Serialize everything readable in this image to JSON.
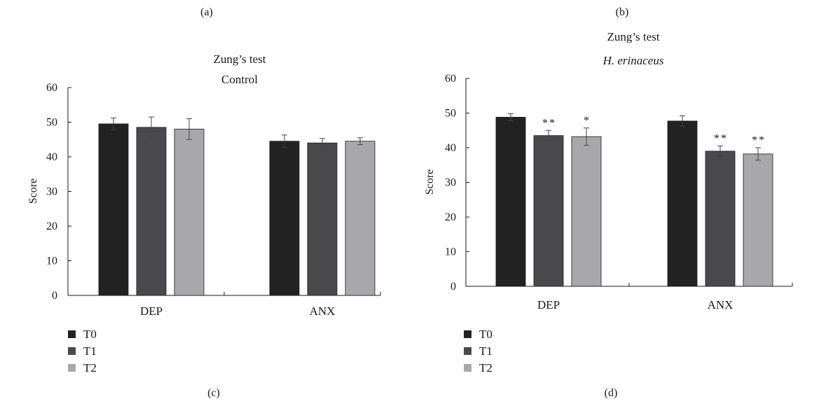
{
  "panel_labels": {
    "top_left": "(a)",
    "top_right": "(b)",
    "bottom_left": "(c)",
    "bottom_right": "(d)"
  },
  "colors": {
    "T0": "#222222",
    "T1": "#4a4a4c",
    "T2": "#a8a8aa"
  },
  "chart_data": [
    {
      "type": "bar",
      "title": "Zung’s test",
      "subtitle": "Control",
      "subtitle_italic": false,
      "ylabel": "Score",
      "xlabel": "",
      "ylim": [
        0,
        60
      ],
      "yticks": [
        0,
        10,
        20,
        30,
        40,
        50,
        60
      ],
      "categories": [
        "DEP",
        "ANX"
      ],
      "legend_position": "bottom-left",
      "series": [
        {
          "name": "T0",
          "values": [
            49.5,
            44.5
          ],
          "errors": [
            1.7,
            1.8
          ],
          "significance": [
            "",
            ""
          ]
        },
        {
          "name": "T1",
          "values": [
            48.5,
            44.0
          ],
          "errors": [
            3.0,
            1.3
          ],
          "significance": [
            "",
            ""
          ]
        },
        {
          "name": "T2",
          "values": [
            48.0,
            44.5
          ],
          "errors": [
            3.0,
            1.0
          ],
          "significance": [
            "",
            ""
          ]
        }
      ]
    },
    {
      "type": "bar",
      "title": "Zung’s test",
      "subtitle": "H. erinaceus",
      "subtitle_italic": true,
      "ylabel": "Score",
      "xlabel": "",
      "ylim": [
        0,
        60
      ],
      "yticks": [
        0,
        10,
        20,
        30,
        40,
        50,
        60
      ],
      "categories": [
        "DEP",
        "ANX"
      ],
      "legend_position": "bottom-left",
      "series": [
        {
          "name": "T0",
          "values": [
            48.8,
            47.7
          ],
          "errors": [
            1.0,
            1.5
          ],
          "significance": [
            "",
            ""
          ]
        },
        {
          "name": "T1",
          "values": [
            43.5,
            39.0
          ],
          "errors": [
            1.5,
            1.5
          ],
          "significance": [
            "**",
            "**"
          ]
        },
        {
          "name": "T2",
          "values": [
            43.2,
            38.2
          ],
          "errors": [
            2.5,
            1.8
          ],
          "significance": [
            "*",
            "**"
          ]
        }
      ]
    }
  ]
}
